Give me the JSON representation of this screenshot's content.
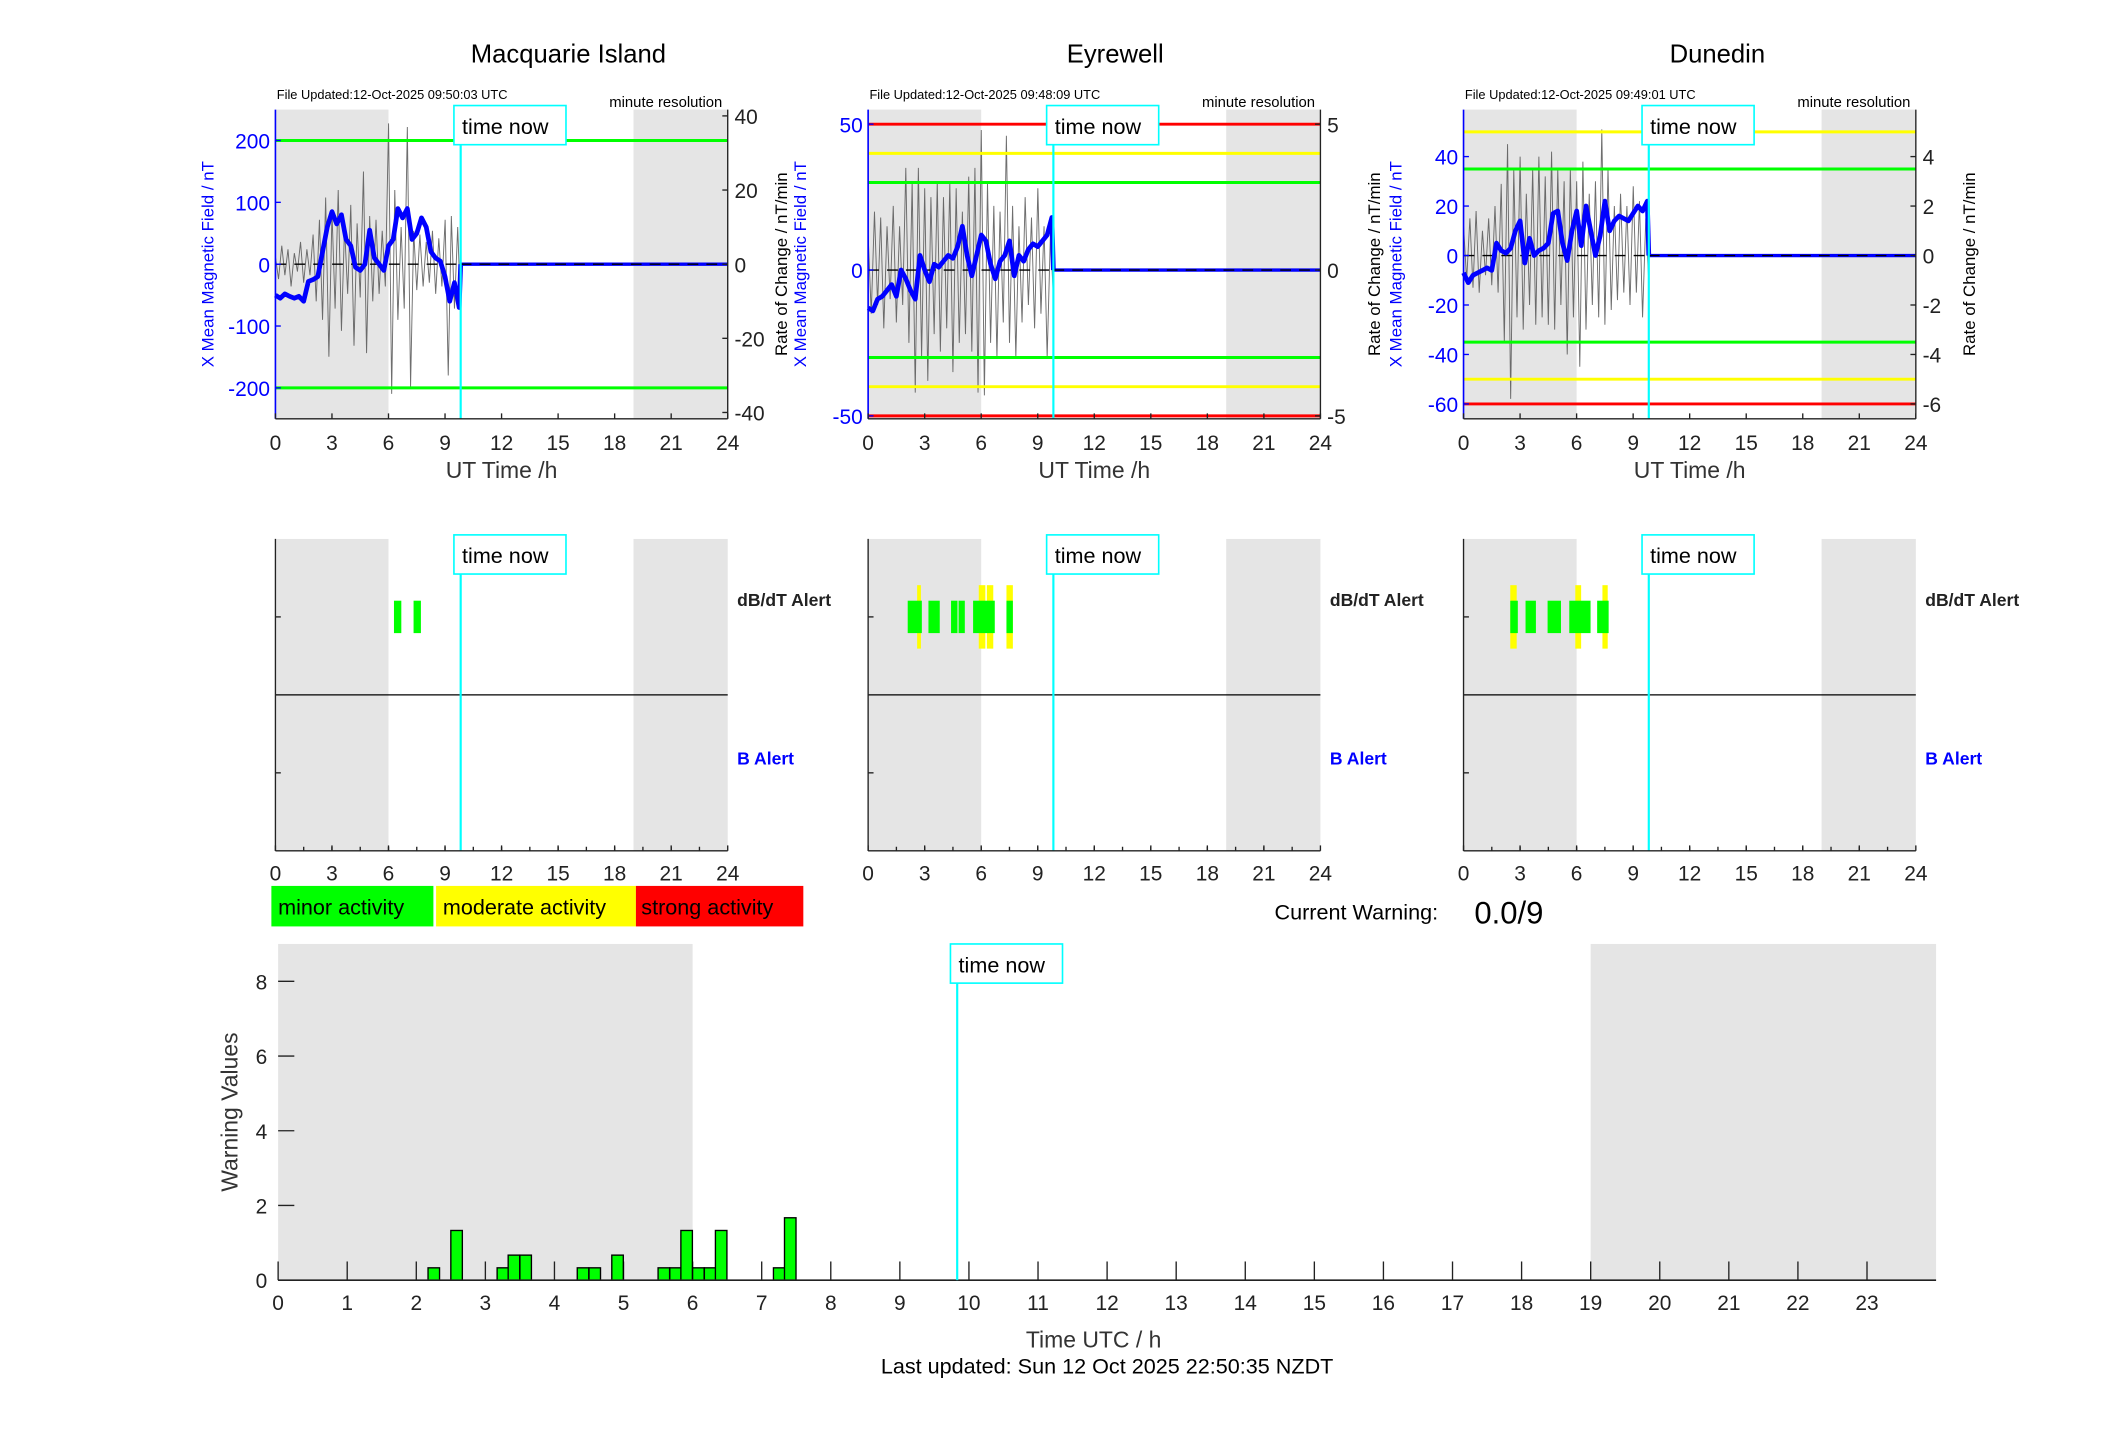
{
  "time_now_label": "time now",
  "alert_labels": {
    "dbdt": "dB/dT Alert",
    "b": "B Alert"
  },
  "legend": [
    {
      "label": "minor activity",
      "color": "#00ff00"
    },
    {
      "label": "moderate activity",
      "color": "#ffff00"
    },
    {
      "label": "strong activity",
      "color": "#ff0000"
    }
  ],
  "current_warning": {
    "label": "Current Warning:",
    "value": "0.0/9"
  },
  "footer": "Last updated: Sun 12 Oct 2025 22:50:35 NZDT",
  "colors": {
    "field": "#0000ff",
    "time_now": "#00ffff",
    "night": "#e5e5e5",
    "minor": "#00ff00",
    "moderate": "#ffff00",
    "strong": "#ff0000"
  },
  "stations": [
    {
      "name": "Macquarie Island",
      "file_updated": "File Updated:12-Oct-2025 09:50:03 UTC",
      "resolution": "minute resolution",
      "ylabel_left": "X Mean Magnetic Field / nT",
      "ylabel_right": "Rate of Change / nT/min",
      "xlabel": "UT Time /h",
      "xticks": [
        0,
        3,
        6,
        9,
        12,
        15,
        18,
        21,
        24
      ],
      "ylim_left": [
        -250,
        250
      ],
      "ylim_right": [
        -41.7,
        41.7
      ],
      "yticks_left": [
        -200,
        -100,
        0,
        100,
        200
      ],
      "yticks_right": [
        -40,
        -20,
        0,
        20,
        40
      ],
      "night": [
        [
          0,
          6
        ],
        [
          19,
          24
        ]
      ],
      "time_now": 9.83,
      "thresholds": [
        {
          "value": 200,
          "level": "minor"
        },
        {
          "value": -200,
          "level": "minor"
        }
      ],
      "field": {
        "t_start": 0,
        "t_step": 0.25,
        "values": [
          -50,
          -55,
          -48,
          -52,
          -55,
          -52,
          -60,
          -28,
          -25,
          -20,
          20,
          60,
          85,
          65,
          80,
          40,
          30,
          -5,
          -10,
          0,
          55,
          10,
          0,
          -10,
          30,
          40,
          90,
          75,
          90,
          40,
          50,
          75,
          60,
          20,
          10,
          5,
          -20,
          -60,
          -30,
          -70
        ]
      },
      "rate": {
        "t_start": 0,
        "t_step": 0.1667,
        "values": [
          2,
          -4,
          5,
          -3,
          4,
          -6,
          3,
          -2,
          6,
          -5,
          4,
          -3,
          8,
          -10,
          12,
          -15,
          18,
          -25,
          14,
          -12,
          20,
          -18,
          10,
          -8,
          16,
          -22,
          11,
          -9,
          25,
          -24,
          13,
          -10,
          12,
          -8,
          9,
          -6,
          38,
          -35,
          20,
          -15,
          10,
          -12,
          37,
          -33,
          9,
          -7,
          8,
          -6,
          6,
          -5,
          9,
          -8,
          7,
          -6,
          12,
          -30,
          13,
          -12,
          10,
          -14
        ]
      },
      "dbdt_alerts": [
        {
          "start": 6.29,
          "end": 6.68,
          "level": "minor"
        },
        {
          "start": 7.33,
          "end": 7.72,
          "level": "minor"
        }
      ],
      "b_alerts": []
    },
    {
      "name": "Eyrewell",
      "file_updated": "File Updated:12-Oct-2025 09:48:09 UTC",
      "resolution": "minute resolution",
      "ylabel_left": "X Mean Magnetic Field / nT",
      "ylabel_right": "Rate of Change / nT/min",
      "xlabel": "UT Time /h",
      "xticks": [
        0,
        3,
        6,
        9,
        12,
        15,
        18,
        21,
        24
      ],
      "ylim_left": [
        -51,
        55
      ],
      "ylim_right": [
        -5.1,
        5.5
      ],
      "yticks_left": [
        -50,
        0,
        50
      ],
      "yticks_right": [
        -5,
        0,
        5
      ],
      "night": [
        [
          0,
          6
        ],
        [
          19,
          24
        ]
      ],
      "time_now": 9.83,
      "thresholds": [
        {
          "value": 50,
          "level": "strong"
        },
        {
          "value": 40,
          "level": "moderate"
        },
        {
          "value": 30,
          "level": "minor"
        },
        {
          "value": -30,
          "level": "minor"
        },
        {
          "value": -40,
          "level": "moderate"
        },
        {
          "value": -50,
          "level": "strong"
        }
      ],
      "field": {
        "t_start": 0,
        "t_step": 0.25,
        "values": [
          -13,
          -14,
          -10,
          -9,
          -7,
          -5,
          -9,
          0,
          -3,
          -7,
          -10,
          5,
          0,
          -4,
          2,
          1,
          3,
          5,
          4,
          8,
          15,
          5,
          -2,
          5,
          12,
          10,
          2,
          -3,
          3,
          5,
          10,
          -2,
          5,
          3,
          7,
          9,
          8,
          10,
          12,
          18
        ]
      },
      "rate": {
        "t_start": 0,
        "t_step": 0.1667,
        "values": [
          1.2,
          -1.5,
          2.0,
          -1.2,
          1.8,
          -2.0,
          1.5,
          -1.0,
          2.2,
          -1.8,
          1.5,
          -1.2,
          3.5,
          -2.5,
          3.0,
          -4.2,
          3.5,
          -3.0,
          2.8,
          -3.8,
          2.5,
          -2.2,
          3.0,
          -2.8,
          2.5,
          -2.0,
          3.0,
          -3.5,
          2.8,
          -2.5,
          2.0,
          -2.2,
          3.2,
          -2.8,
          3.5,
          -4.2,
          4.8,
          -4.3,
          3.0,
          -2.5,
          2.2,
          -3.0,
          2.0,
          -1.8,
          4.6,
          -2.5,
          2.2,
          -3.0,
          1.5,
          -1.8,
          2.5,
          -1.2,
          1.8,
          -2.0,
          2.8,
          -1.5,
          1.5,
          -3.0,
          1.2,
          -1.0
        ]
      },
      "dbdt_alerts": [
        {
          "start": 2.6,
          "end": 2.8,
          "level": "moderate"
        },
        {
          "start": 5.87,
          "end": 6.22,
          "level": "moderate"
        },
        {
          "start": 6.3,
          "end": 6.64,
          "level": "moderate"
        },
        {
          "start": 7.34,
          "end": 7.68,
          "level": "moderate"
        },
        {
          "start": 2.1,
          "end": 2.85,
          "level": "minor"
        },
        {
          "start": 3.2,
          "end": 3.8,
          "level": "minor"
        },
        {
          "start": 4.4,
          "end": 4.74,
          "level": "minor"
        },
        {
          "start": 4.8,
          "end": 5.13,
          "level": "minor"
        },
        {
          "start": 5.57,
          "end": 6.72,
          "level": "minor"
        },
        {
          "start": 7.34,
          "end": 7.68,
          "level": "minor"
        }
      ],
      "b_alerts": []
    },
    {
      "name": "Dunedin",
      "file_updated": "File Updated:12-Oct-2025 09:49:01 UTC",
      "resolution": "minute resolution",
      "ylabel_left": "X Mean Magnetic Field / nT",
      "ylabel_right": "Rate of Change / nT/min",
      "xlabel": "UT Time /h",
      "xticks": [
        0,
        3,
        6,
        9,
        12,
        15,
        18,
        21,
        24
      ],
      "ylim_left": [
        -66,
        59
      ],
      "ylim_right": [
        -6.6,
        5.9
      ],
      "yticks_left": [
        -60,
        -40,
        -20,
        0,
        20,
        40
      ],
      "yticks_right": [
        -6,
        -4,
        -2,
        0,
        2,
        4
      ],
      "night": [
        [
          0,
          6
        ],
        [
          19,
          24
        ]
      ],
      "time_now": 9.83,
      "thresholds": [
        {
          "value": 50,
          "level": "moderate"
        },
        {
          "value": 35,
          "level": "minor"
        },
        {
          "value": -35,
          "level": "minor"
        },
        {
          "value": -50,
          "level": "moderate"
        },
        {
          "value": -60,
          "level": "strong"
        }
      ],
      "field": {
        "t_start": 0,
        "t_step": 0.25,
        "values": [
          -7,
          -11,
          -8,
          -7,
          -6,
          -5,
          -6,
          5,
          2,
          1,
          3,
          10,
          14,
          -3,
          7,
          0,
          2,
          3,
          5,
          17,
          18,
          5,
          -2,
          10,
          18,
          4,
          20,
          10,
          0,
          8,
          22,
          10,
          14,
          16,
          15,
          14,
          17,
          20,
          18,
          22
        ]
      },
      "rate": {
        "t_start": 0,
        "t_step": 0.1667,
        "values": [
          1.2,
          -1.0,
          1.5,
          -1.3,
          1.8,
          -1.5,
          1.0,
          -0.8,
          1.5,
          -1.2,
          2.0,
          -1.5,
          2.9,
          -3.5,
          4.5,
          -5.8,
          3.5,
          -2.5,
          4.0,
          -3.0,
          2.5,
          -2.0,
          3.5,
          -2.8,
          4.0,
          -2.5,
          3.2,
          -2.8,
          4.2,
          -3.0,
          3.5,
          -2.0,
          3.0,
          -4.0,
          3.5,
          -2.5,
          3.0,
          -4.5,
          3.8,
          -3.0,
          2.5,
          -2.0,
          3.0,
          -2.5,
          5.1,
          -2.8,
          3.5,
          -2.2,
          2.0,
          -1.8,
          2.5,
          -1.5,
          2.0,
          -2.0,
          2.8,
          -1.5,
          2.2,
          -2.5,
          1.5,
          -1.2
        ]
      },
      "dbdt_alerts": [
        {
          "start": 2.48,
          "end": 2.82,
          "level": "moderate"
        },
        {
          "start": 5.93,
          "end": 6.24,
          "level": "moderate"
        },
        {
          "start": 7.37,
          "end": 7.65,
          "level": "moderate"
        },
        {
          "start": 2.48,
          "end": 2.88,
          "level": "minor"
        },
        {
          "start": 3.29,
          "end": 3.84,
          "level": "minor"
        },
        {
          "start": 4.46,
          "end": 5.17,
          "level": "minor"
        },
        {
          "start": 5.61,
          "end": 6.74,
          "level": "minor"
        },
        {
          "start": 7.09,
          "end": 7.7,
          "level": "minor"
        }
      ],
      "b_alerts": []
    }
  ],
  "chart_data": {
    "type": "bar",
    "title": "",
    "xlabel": "Time UTC / h",
    "ylabel": "Warning Values",
    "xlim": [
      0,
      24
    ],
    "ylim": [
      0,
      9
    ],
    "xticks": [
      0,
      1,
      2,
      3,
      4,
      5,
      6,
      7,
      8,
      9,
      10,
      11,
      12,
      13,
      14,
      15,
      16,
      17,
      18,
      19,
      20,
      21,
      22,
      23
    ],
    "yticks": [
      0,
      2,
      4,
      6,
      8
    ],
    "night": [
      [
        0,
        6
      ],
      [
        19,
        24
      ]
    ],
    "time_now": 9.83,
    "bin_width": 0.1667,
    "bins": [
      {
        "start": 2.17,
        "value": 0.33
      },
      {
        "start": 2.5,
        "value": 1.33
      },
      {
        "start": 3.17,
        "value": 0.33
      },
      {
        "start": 3.33,
        "value": 0.67
      },
      {
        "start": 3.5,
        "value": 0.67
      },
      {
        "start": 4.33,
        "value": 0.33
      },
      {
        "start": 4.5,
        "value": 0.33
      },
      {
        "start": 4.83,
        "value": 0.67
      },
      {
        "start": 5.5,
        "value": 0.33
      },
      {
        "start": 5.67,
        "value": 0.33
      },
      {
        "start": 5.83,
        "value": 1.33
      },
      {
        "start": 6.0,
        "value": 0.33
      },
      {
        "start": 6.17,
        "value": 0.33
      },
      {
        "start": 6.33,
        "value": 1.33
      },
      {
        "start": 7.17,
        "value": 0.33
      },
      {
        "start": 7.33,
        "value": 1.67
      }
    ]
  }
}
